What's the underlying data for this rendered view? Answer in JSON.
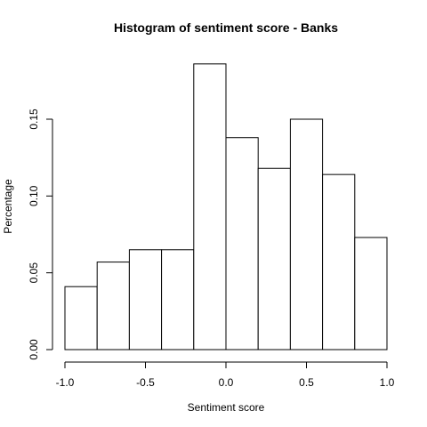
{
  "chart_data": {
    "type": "bar",
    "title": "Histogram of sentiment score - Banks",
    "xlabel": "Sentiment score",
    "ylabel": "Percentage",
    "xlim": [
      -1.0,
      1.0
    ],
    "ylim": [
      0,
      0.19
    ],
    "bin_edges": [
      -1.0,
      -0.8,
      -0.6,
      -0.4,
      -0.2,
      0.0,
      0.2,
      0.4,
      0.6,
      0.8,
      1.0
    ],
    "values": [
      0.041,
      0.057,
      0.065,
      0.065,
      0.186,
      0.138,
      0.118,
      0.15,
      0.114,
      0.073
    ],
    "x_ticks": [
      -1.0,
      -0.5,
      0.0,
      0.5,
      1.0
    ],
    "x_tick_labels": [
      "-1.0",
      "-0.5",
      "0.0",
      "0.5",
      "1.0"
    ],
    "y_ticks": [
      0.0,
      0.05,
      0.1,
      0.15
    ],
    "y_tick_labels": [
      "0.00",
      "0.05",
      "0.10",
      "0.15"
    ],
    "grid": false,
    "bar_fill": "#ffffff",
    "bar_stroke": "#000000"
  }
}
